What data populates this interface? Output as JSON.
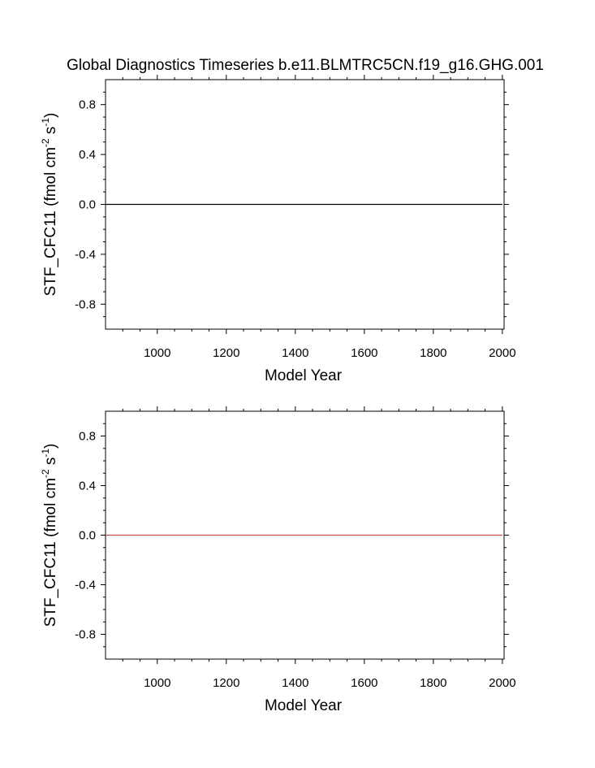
{
  "figure_title": "Global Diagnostics Timeseries b.e11.BLMTRC5CN.f19_g16.GHG.001",
  "chart_data": [
    {
      "type": "line",
      "xlabel": "Model Year",
      "ylabel": {
        "base": "STF_CFC11 (fmol cm",
        "exp1": "-2",
        "mid": " s",
        "exp2": "-1",
        "end": ")"
      },
      "xlim": [
        850,
        2005
      ],
      "ylim": [
        -1.0,
        1.0
      ],
      "xticks": [
        1000,
        1200,
        1400,
        1600,
        1800,
        2000
      ],
      "xtick_labels": [
        "1000",
        "1200",
        "1400",
        "1600",
        "1800",
        "2000"
      ],
      "yticks": [
        0.8,
        0.4,
        0.0,
        -0.4,
        -0.8
      ],
      "ytick_labels": [
        "0.8",
        "0.4",
        "0.0",
        "-0.4",
        "-0.8"
      ],
      "grid": false,
      "series": [
        {
          "color": "#000000",
          "x": [
            850,
            2000
          ],
          "y": [
            0.0,
            0.0
          ]
        }
      ]
    },
    {
      "type": "line",
      "xlabel": "Model Year",
      "ylabel": {
        "base": "STF_CFC11 (fmol cm",
        "exp1": "-2",
        "mid": " s",
        "exp2": "-1",
        "end": ")"
      },
      "xlim": [
        850,
        2005
      ],
      "ylim": [
        -1.0,
        1.0
      ],
      "xticks": [
        1000,
        1200,
        1400,
        1600,
        1800,
        2000
      ],
      "xtick_labels": [
        "1000",
        "1200",
        "1400",
        "1600",
        "1800",
        "2000"
      ],
      "yticks": [
        0.8,
        0.4,
        0.0,
        -0.4,
        -0.8
      ],
      "ytick_labels": [
        "0.8",
        "0.4",
        "0.0",
        "-0.4",
        "-0.8"
      ],
      "grid": false,
      "series": [
        {
          "color": "#c0504d",
          "x": [
            850,
            2000
          ],
          "y": [
            0.0,
            0.0
          ]
        }
      ]
    }
  ]
}
